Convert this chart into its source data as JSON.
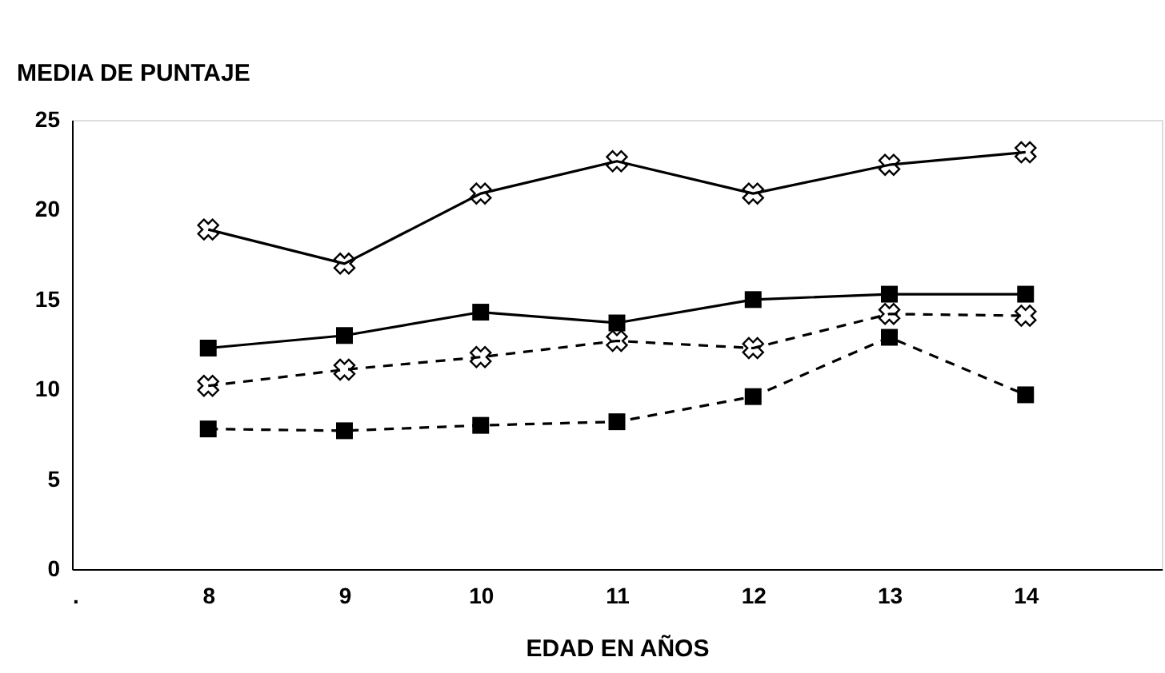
{
  "chart_data": {
    "type": "line",
    "xlabel": "EDAD EN AÑOS",
    "ylabel": "MEDIA DE PUNTAJE",
    "x": [
      8,
      9,
      10,
      11,
      12,
      13,
      14
    ],
    "xlim": [
      7,
      15
    ],
    "xticks": [
      {
        "value": 7,
        "label": "."
      },
      8,
      9,
      10,
      11,
      12,
      13,
      14
    ],
    "ylim": [
      0,
      25
    ],
    "yticks": [
      0,
      5,
      10,
      15,
      20,
      25
    ],
    "grid": false,
    "series": [
      {
        "color": "#000000",
        "marker": "cross",
        "line_style": "solid",
        "values": [
          18.9,
          17.0,
          20.9,
          22.7,
          20.9,
          22.5,
          23.2
        ]
      },
      {
        "color": "#000000",
        "marker": "square",
        "line_style": "solid",
        "values": [
          12.3,
          13.0,
          14.3,
          13.7,
          15.0,
          15.3,
          15.3
        ]
      },
      {
        "color": "#000000",
        "marker": "cross",
        "line_style": "dashed",
        "values": [
          10.2,
          11.1,
          11.8,
          12.7,
          12.3,
          14.2,
          14.1
        ]
      },
      {
        "color": "#000000",
        "marker": "square",
        "line_style": "dashed",
        "values": [
          7.8,
          7.7,
          8.0,
          8.2,
          9.6,
          12.9,
          9.7
        ]
      }
    ]
  }
}
